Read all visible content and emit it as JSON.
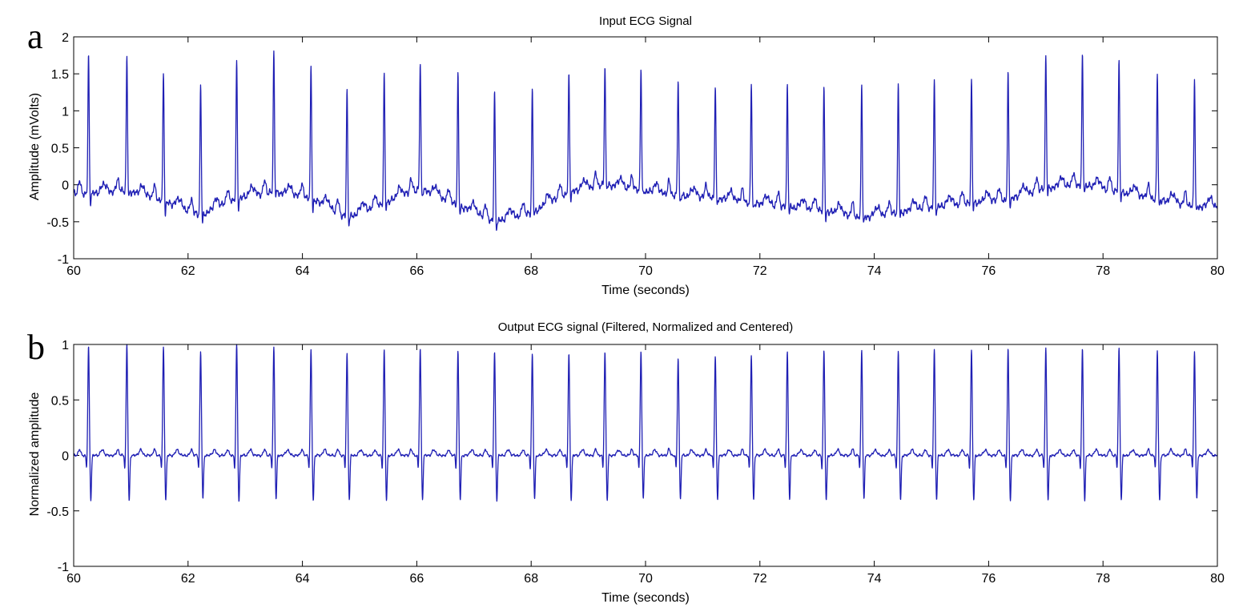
{
  "colors": {
    "trace": "#1f1fb4",
    "axis": "#000000",
    "background": "#ffffff"
  },
  "chart_data": [
    {
      "type": "line",
      "panel_label": "a",
      "title": "Input ECG Signal",
      "xlabel": "Time (seconds)",
      "ylabel": "Amplitude (mVolts)",
      "xlim": [
        60,
        80
      ],
      "ylim": [
        -1,
        2
      ],
      "xticks": [
        "60",
        "62",
        "64",
        "66",
        "68",
        "70",
        "72",
        "74",
        "76",
        "78",
        "80"
      ],
      "yticks": [
        "-1",
        "-0.5",
        "0",
        "0.5",
        "1",
        "1.5",
        "2"
      ],
      "grid": false,
      "series": [
        {
          "beats": [
            {
              "t": 60.26,
              "peak": 1.74,
              "trough": -0.2,
              "base": -0.12
            },
            {
              "t": 60.93,
              "peak": 1.73,
              "trough": -0.15,
              "base": -0.08
            },
            {
              "t": 61.57,
              "peak": 1.51,
              "trough": -0.35,
              "base": -0.22
            },
            {
              "t": 62.22,
              "peak": 1.37,
              "trough": -0.5,
              "base": -0.42
            },
            {
              "t": 62.85,
              "peak": 1.66,
              "trough": -0.3,
              "base": -0.18
            },
            {
              "t": 63.5,
              "peak": 1.82,
              "trough": -0.1,
              "base": -0.1
            },
            {
              "t": 64.15,
              "peak": 1.59,
              "trough": -0.3,
              "base": -0.18
            },
            {
              "t": 64.78,
              "peak": 1.29,
              "trough": -0.5,
              "base": -0.45
            },
            {
              "t": 65.43,
              "peak": 1.5,
              "trough": -0.3,
              "base": -0.25
            },
            {
              "t": 66.06,
              "peak": 1.63,
              "trough": -0.1,
              "base": -0.05
            },
            {
              "t": 66.72,
              "peak": 1.48,
              "trough": -0.35,
              "base": -0.28
            },
            {
              "t": 67.36,
              "peak": 1.26,
              "trough": -0.55,
              "base": -0.5
            },
            {
              "t": 68.02,
              "peak": 1.28,
              "trough": -0.4,
              "base": -0.38
            },
            {
              "t": 68.66,
              "peak": 1.48,
              "trough": -0.15,
              "base": -0.1
            },
            {
              "t": 69.29,
              "peak": 1.62,
              "trough": 0.0,
              "base": 0.0
            },
            {
              "t": 69.92,
              "peak": 1.58,
              "trough": -0.1,
              "base": -0.08
            },
            {
              "t": 70.57,
              "peak": 1.43,
              "trough": -0.2,
              "base": -0.15
            },
            {
              "t": 71.22,
              "peak": 1.35,
              "trough": -0.25,
              "base": -0.18
            },
            {
              "t": 71.85,
              "peak": 1.36,
              "trough": -0.3,
              "base": -0.25
            },
            {
              "t": 72.48,
              "peak": 1.34,
              "trough": -0.35,
              "base": -0.3
            },
            {
              "t": 73.12,
              "peak": 1.31,
              "trough": -0.45,
              "base": -0.35
            },
            {
              "t": 73.78,
              "peak": 1.36,
              "trough": -0.5,
              "base": -0.45
            },
            {
              "t": 74.42,
              "peak": 1.37,
              "trough": -0.4,
              "base": -0.38
            },
            {
              "t": 75.05,
              "peak": 1.4,
              "trough": -0.35,
              "base": -0.3
            },
            {
              "t": 75.7,
              "peak": 1.43,
              "trough": -0.3,
              "base": -0.25
            },
            {
              "t": 76.34,
              "peak": 1.48,
              "trough": -0.25,
              "base": -0.2
            },
            {
              "t": 77.0,
              "peak": 1.75,
              "trough": -0.1,
              "base": -0.05
            },
            {
              "t": 77.64,
              "peak": 1.72,
              "trough": -0.05,
              "base": 0.0
            },
            {
              "t": 78.28,
              "peak": 1.69,
              "trough": -0.15,
              "base": -0.1
            },
            {
              "t": 78.95,
              "peak": 1.48,
              "trough": -0.25,
              "base": -0.2
            },
            {
              "t": 79.6,
              "peak": 1.44,
              "trough": -0.35,
              "base": -0.3
            }
          ]
        }
      ]
    },
    {
      "type": "line",
      "panel_label": "b",
      "title": "Output ECG signal (Filtered, Normalized and Centered)",
      "xlabel": "Time (seconds)",
      "ylabel": "Normalized amplitude",
      "xlim": [
        60,
        80
      ],
      "ylim": [
        -1,
        1
      ],
      "xticks": [
        "60",
        "62",
        "64",
        "66",
        "68",
        "70",
        "72",
        "74",
        "76",
        "78",
        "80"
      ],
      "yticks": [
        "-1",
        "-0.5",
        "0",
        "0.5",
        "1"
      ],
      "grid": false,
      "series": [
        {
          "beats": [
            {
              "t": 60.26,
              "peak": 0.98,
              "trough": -0.4,
              "base": 0.0
            },
            {
              "t": 60.93,
              "peak": 1.0,
              "trough": -0.42,
              "base": 0.0
            },
            {
              "t": 61.57,
              "peak": 0.98,
              "trough": -0.41,
              "base": 0.0
            },
            {
              "t": 62.22,
              "peak": 0.94,
              "trough": -0.4,
              "base": 0.0
            },
            {
              "t": 62.85,
              "peak": 1.0,
              "trough": -0.42,
              "base": 0.0
            },
            {
              "t": 63.5,
              "peak": 0.98,
              "trough": -0.4,
              "base": 0.0
            },
            {
              "t": 64.15,
              "peak": 0.95,
              "trough": -0.41,
              "base": 0.0
            },
            {
              "t": 64.78,
              "peak": 0.92,
              "trough": -0.4,
              "base": 0.0
            },
            {
              "t": 65.43,
              "peak": 0.95,
              "trough": -0.41,
              "base": 0.0
            },
            {
              "t": 66.06,
              "peak": 0.96,
              "trough": -0.4,
              "base": 0.0
            },
            {
              "t": 66.72,
              "peak": 0.93,
              "trough": -0.4,
              "base": 0.0
            },
            {
              "t": 67.36,
              "peak": 0.93,
              "trough": -0.41,
              "base": 0.0
            },
            {
              "t": 68.02,
              "peak": 0.91,
              "trough": -0.4,
              "base": 0.0
            },
            {
              "t": 68.66,
              "peak": 0.91,
              "trough": -0.4,
              "base": 0.0
            },
            {
              "t": 69.29,
              "peak": 0.94,
              "trough": -0.41,
              "base": 0.0
            },
            {
              "t": 69.92,
              "peak": 0.94,
              "trough": -0.4,
              "base": 0.0
            },
            {
              "t": 70.57,
              "peak": 0.88,
              "trough": -0.4,
              "base": 0.0
            },
            {
              "t": 71.22,
              "peak": 0.9,
              "trough": -0.41,
              "base": 0.0
            },
            {
              "t": 71.85,
              "peak": 0.9,
              "trough": -0.41,
              "base": 0.0
            },
            {
              "t": 72.48,
              "peak": 0.93,
              "trough": -0.4,
              "base": 0.0
            },
            {
              "t": 73.12,
              "peak": 0.94,
              "trough": -0.41,
              "base": 0.0
            },
            {
              "t": 73.78,
              "peak": 0.95,
              "trough": -0.4,
              "base": 0.0
            },
            {
              "t": 74.42,
              "peak": 0.94,
              "trough": -0.41,
              "base": 0.0
            },
            {
              "t": 75.05,
              "peak": 0.95,
              "trough": -0.4,
              "base": 0.0
            },
            {
              "t": 75.7,
              "peak": 0.95,
              "trough": -0.41,
              "base": 0.0
            },
            {
              "t": 76.34,
              "peak": 0.95,
              "trough": -0.4,
              "base": 0.0
            },
            {
              "t": 77.0,
              "peak": 0.97,
              "trough": -0.41,
              "base": 0.0
            },
            {
              "t": 77.64,
              "peak": 0.95,
              "trough": -0.41,
              "base": 0.0
            },
            {
              "t": 78.28,
              "peak": 0.97,
              "trough": -0.4,
              "base": 0.0
            },
            {
              "t": 78.95,
              "peak": 0.94,
              "trough": -0.41,
              "base": 0.0
            },
            {
              "t": 79.6,
              "peak": 0.94,
              "trough": -0.4,
              "base": 0.0
            }
          ]
        }
      ]
    }
  ]
}
